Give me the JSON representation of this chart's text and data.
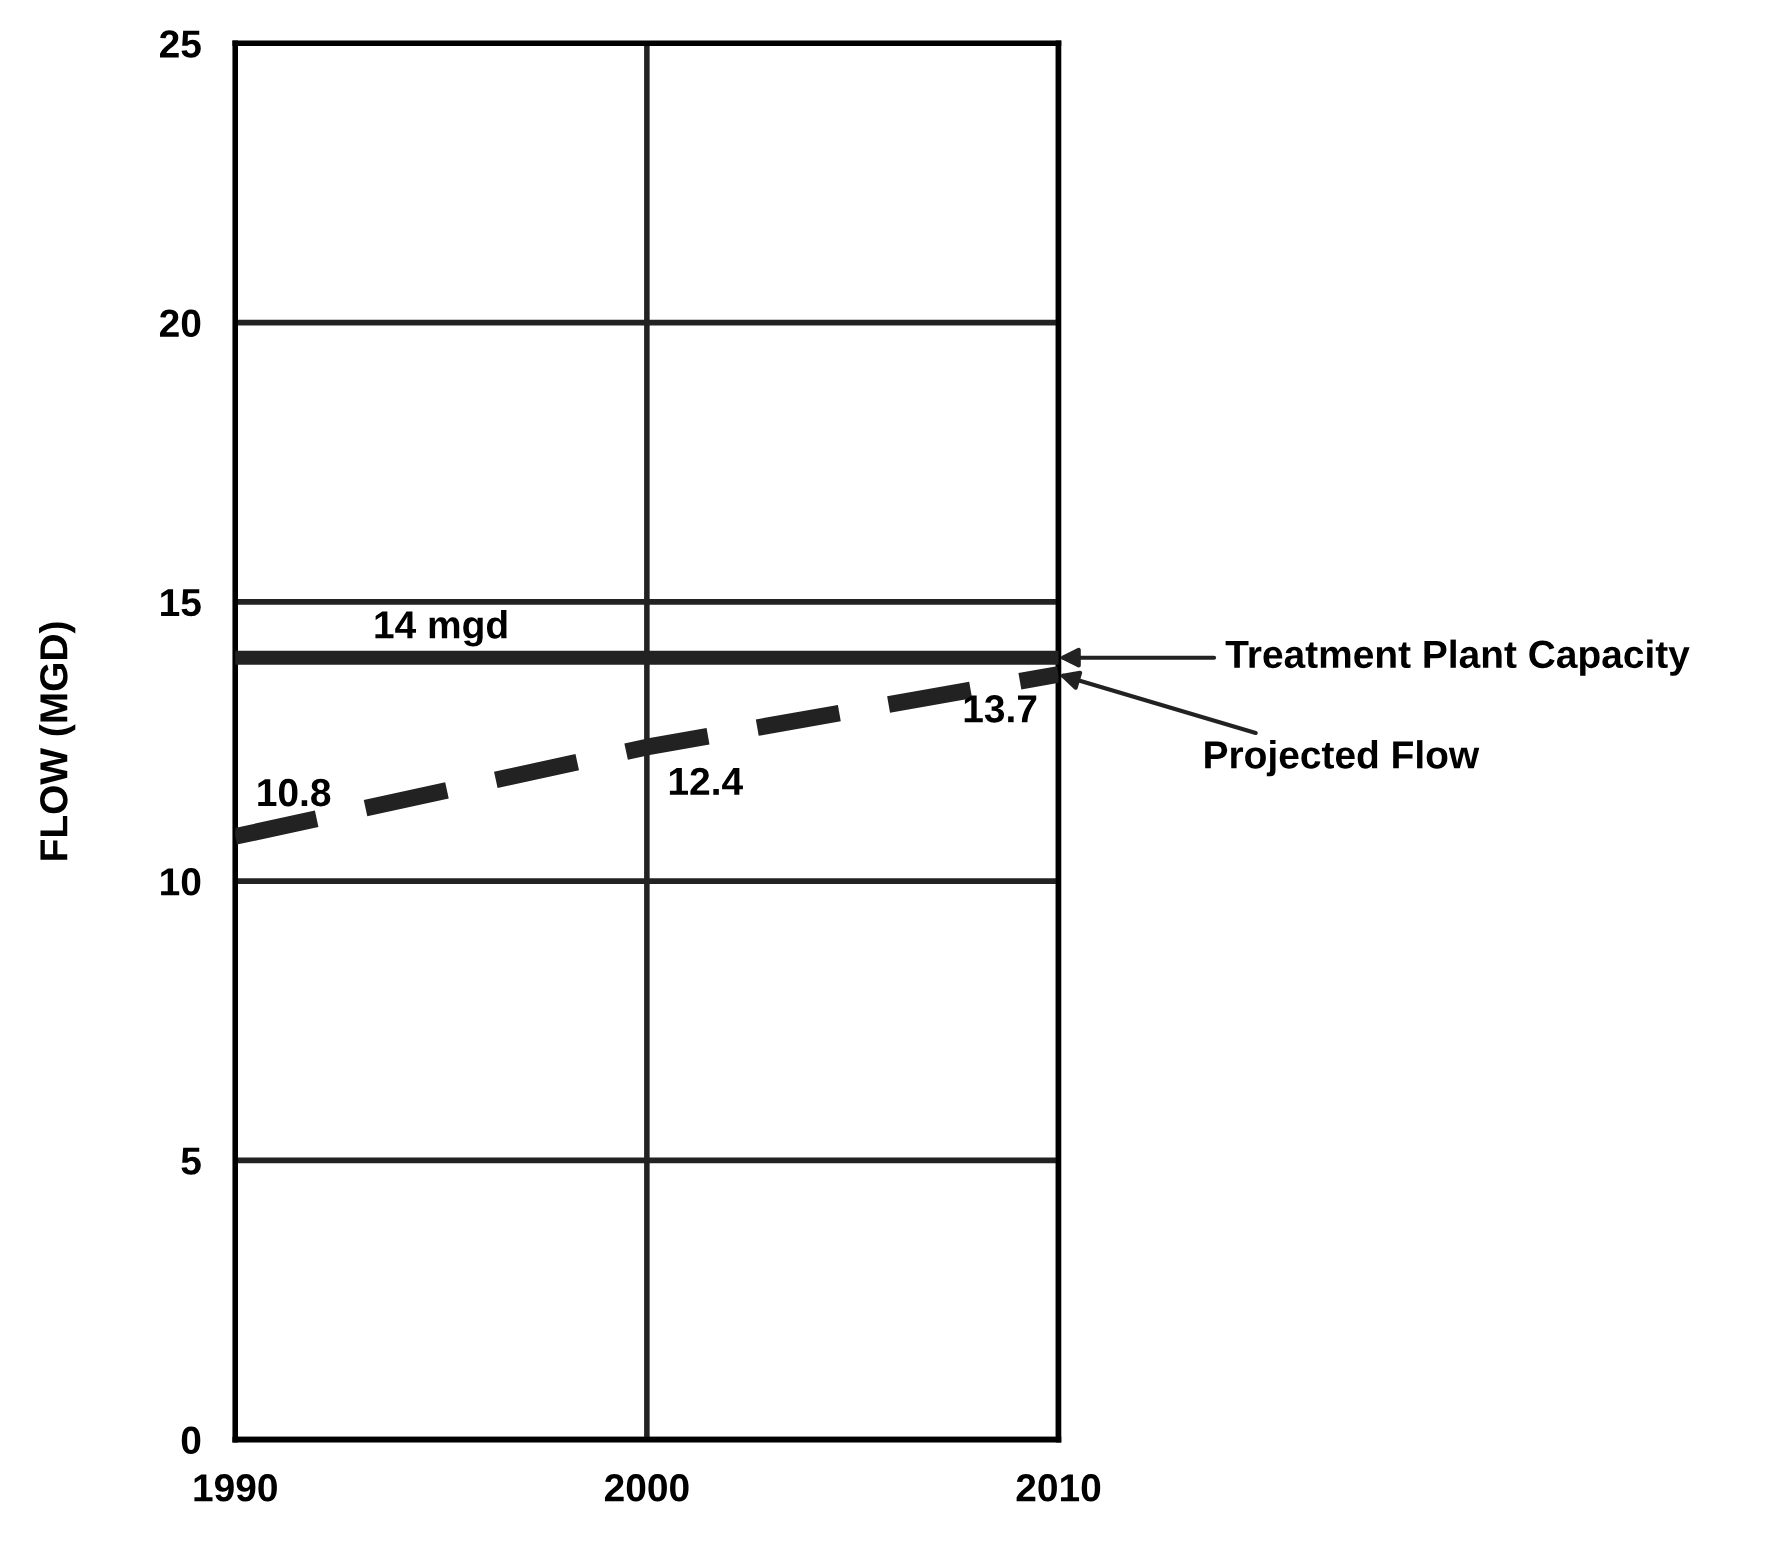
{
  "chart_data": {
    "type": "line",
    "ylabel": "FLOW (MGD)",
    "x": [
      1990,
      2000,
      2010
    ],
    "series": [
      {
        "name": "Projected Flow",
        "color": "#222222",
        "values": [
          10.8,
          12.4,
          13.7
        ],
        "value_labels": [
          "10.8",
          "12.4",
          "13.7"
        ],
        "line_style": "dashed"
      }
    ],
    "ref_lines": [
      {
        "axis": "y",
        "value": 14,
        "label": "14 mgd",
        "color": "#222222",
        "line_style": "solid"
      }
    ],
    "annotations": [
      "Treatment Plant Capacity"
    ],
    "xlim": [
      1990,
      2010
    ],
    "ylim": [
      0,
      25
    ],
    "xticks": [
      1990,
      2000,
      2010
    ],
    "yticks": [
      0,
      5,
      10,
      15,
      20,
      25
    ],
    "grid": true,
    "marker": "none",
    "legend": false
  }
}
